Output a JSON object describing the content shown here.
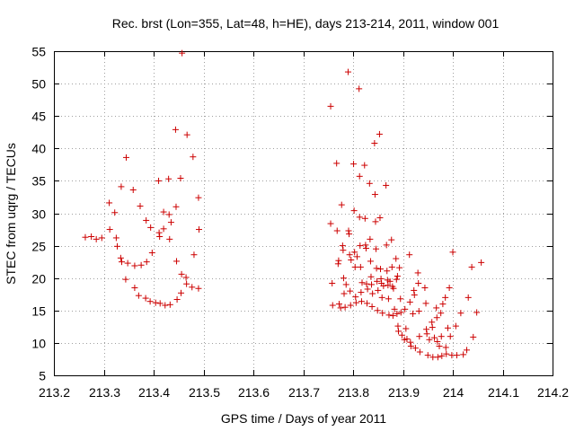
{
  "chart_data": {
    "type": "scatter",
    "title": "Rec. brst (Lon=355, Lat=48, h=HE), days 213-214, 2011, window 001",
    "xlabel": "GPS time / Days of year 2011",
    "ylabel": "STEC from uqrg / TECUs",
    "xlim": [
      213.2,
      214.2
    ],
    "ylim": [
      5,
      55
    ],
    "xticks": [
      213.2,
      213.3,
      213.4,
      213.5,
      213.6,
      213.7,
      213.8,
      213.9,
      214,
      214.1,
      214.2
    ],
    "xtick_labels": [
      "213.2",
      "213.3",
      "213.4",
      "213.5",
      "213.6",
      "213.7",
      "213.8",
      "213.9",
      "214",
      "214.1",
      "214.2"
    ],
    "yticks": [
      5,
      10,
      15,
      20,
      25,
      30,
      35,
      40,
      45,
      50,
      55
    ],
    "ytick_labels": [
      "5",
      "10",
      "15",
      "20",
      "25",
      "30",
      "35",
      "40",
      "45",
      "50",
      "55"
    ],
    "grid": true,
    "marker": "+",
    "color": "#cc0000",
    "series": [
      {
        "points": [
          [
            213.263,
            26.3
          ],
          [
            213.275,
            26.4
          ],
          [
            213.285,
            26.0
          ],
          [
            213.296,
            26.2
          ],
          [
            213.311,
            31.6
          ],
          [
            213.312,
            27.5
          ],
          [
            213.322,
            30.1
          ],
          [
            213.325,
            26.2
          ],
          [
            213.327,
            24.9
          ],
          [
            213.334,
            23.1
          ],
          [
            213.335,
            34.1
          ],
          [
            213.336,
            22.5
          ],
          [
            213.344,
            19.8
          ],
          [
            213.345,
            38.6
          ],
          [
            213.348,
            22.3
          ],
          [
            213.359,
            33.6
          ],
          [
            213.362,
            21.9
          ],
          [
            213.362,
            18.5
          ],
          [
            213.37,
            17.3
          ],
          [
            213.373,
            31.1
          ],
          [
            213.375,
            22.0
          ],
          [
            213.384,
            16.9
          ],
          [
            213.385,
            28.9
          ],
          [
            213.386,
            22.5
          ],
          [
            213.393,
            16.4
          ],
          [
            213.394,
            27.8
          ],
          [
            213.397,
            23.9
          ],
          [
            213.404,
            16.2
          ],
          [
            213.41,
            35.0
          ],
          [
            213.411,
            27.0
          ],
          [
            213.412,
            26.4
          ],
          [
            213.413,
            16.1
          ],
          [
            213.42,
            27.6
          ],
          [
            213.42,
            30.2
          ],
          [
            213.423,
            15.8
          ],
          [
            213.43,
            35.3
          ],
          [
            213.431,
            29.8
          ],
          [
            213.432,
            26.0
          ],
          [
            213.433,
            15.9
          ],
          [
            213.435,
            28.6
          ],
          [
            213.444,
            42.9
          ],
          [
            213.445,
            31.0
          ],
          [
            213.446,
            22.6
          ],
          [
            213.447,
            16.7
          ],
          [
            213.454,
            35.4
          ],
          [
            213.455,
            17.7
          ],
          [
            213.456,
            20.6
          ],
          [
            213.457,
            54.7
          ],
          [
            213.465,
            20.1
          ],
          [
            213.466,
            19.1
          ],
          [
            213.467,
            42.1
          ],
          [
            213.477,
            18.6
          ],
          [
            213.479,
            38.7
          ],
          [
            213.481,
            23.6
          ],
          [
            213.49,
            18.4
          ],
          [
            213.49,
            32.4
          ],
          [
            213.491,
            27.5
          ]
        ]
      },
      {
        "points": [
          [
            213.755,
            46.5
          ],
          [
            213.755,
            28.4
          ],
          [
            213.758,
            19.2
          ],
          [
            213.759,
            15.8
          ],
          [
            213.767,
            37.7
          ],
          [
            213.768,
            27.3
          ],
          [
            213.77,
            22.2
          ],
          [
            213.771,
            22.7
          ],
          [
            213.772,
            16.0
          ],
          [
            213.775,
            15.4
          ],
          [
            213.777,
            31.3
          ],
          [
            213.779,
            25.0
          ],
          [
            213.78,
            24.3
          ],
          [
            213.781,
            20.0
          ],
          [
            213.782,
            17.6
          ],
          [
            213.784,
            15.5
          ],
          [
            213.786,
            19.0
          ],
          [
            213.79,
            51.8
          ],
          [
            213.791,
            27.3
          ],
          [
            213.792,
            26.8
          ],
          [
            213.793,
            23.6
          ],
          [
            213.794,
            18.0
          ],
          [
            213.795,
            15.8
          ],
          [
            213.796,
            22.8
          ],
          [
            213.801,
            37.6
          ],
          [
            213.802,
            30.4
          ],
          [
            213.803,
            24.0
          ],
          [
            213.804,
            21.7
          ],
          [
            213.805,
            17.1
          ],
          [
            213.806,
            16.2
          ],
          [
            213.808,
            23.3
          ],
          [
            213.812,
            49.2
          ],
          [
            213.813,
            35.7
          ],
          [
            213.813,
            29.4
          ],
          [
            213.814,
            25.0
          ],
          [
            213.815,
            21.7
          ],
          [
            213.816,
            17.8
          ],
          [
            213.817,
            16.4
          ],
          [
            213.818,
            19.3
          ],
          [
            213.823,
            37.4
          ],
          [
            213.824,
            29.2
          ],
          [
            213.825,
            25.1
          ],
          [
            213.826,
            24.6
          ],
          [
            213.827,
            19.1
          ],
          [
            213.828,
            16.1
          ],
          [
            213.829,
            18.3
          ],
          [
            213.833,
            34.6
          ],
          [
            213.834,
            26.0
          ],
          [
            213.835,
            22.6
          ],
          [
            213.836,
            20.2
          ],
          [
            213.837,
            19.0
          ],
          [
            213.838,
            15.6
          ],
          [
            213.839,
            17.6
          ],
          [
            213.843,
            40.8
          ],
          [
            213.844,
            32.9
          ],
          [
            213.845,
            28.7
          ],
          [
            213.846,
            24.5
          ],
          [
            213.847,
            21.5
          ],
          [
            213.848,
            19.5
          ],
          [
            213.849,
            15.0
          ],
          [
            213.85,
            18.1
          ],
          [
            213.853,
            42.2
          ],
          [
            213.854,
            29.3
          ],
          [
            213.855,
            21.4
          ],
          [
            213.856,
            19.9
          ],
          [
            213.857,
            19.2
          ],
          [
            213.858,
            17.0
          ],
          [
            213.859,
            14.6
          ],
          [
            213.861,
            18.8
          ],
          [
            213.866,
            34.3
          ],
          [
            213.867,
            25.1
          ],
          [
            213.868,
            21.1
          ],
          [
            213.869,
            19.7
          ],
          [
            213.87,
            18.9
          ],
          [
            213.871,
            16.8
          ],
          [
            213.872,
            14.3
          ],
          [
            213.874,
            19.5
          ],
          [
            213.877,
            25.9
          ],
          [
            213.878,
            21.7
          ],
          [
            213.879,
            18.7
          ],
          [
            213.88,
            14.2
          ],
          [
            213.881,
            18.4
          ],
          [
            213.883,
            15.2
          ],
          [
            213.886,
            23.0
          ],
          [
            213.887,
            19.8
          ],
          [
            213.888,
            14.5
          ],
          [
            213.889,
            20.3
          ],
          [
            213.89,
            12.6
          ],
          [
            213.891,
            11.8
          ],
          [
            213.893,
            21.6
          ],
          [
            213.895,
            16.8
          ],
          [
            213.896,
            14.7
          ],
          [
            213.898,
            11.2
          ],
          [
            213.903,
            10.5
          ],
          [
            213.904,
            15.2
          ],
          [
            213.906,
            12.2
          ],
          [
            213.908,
            10.6
          ],
          [
            213.913,
            23.6
          ],
          [
            213.914,
            16.3
          ],
          [
            213.915,
            10.1
          ],
          [
            213.916,
            9.5
          ],
          [
            213.92,
            14.5
          ],
          [
            213.922,
            18.1
          ],
          [
            213.923,
            17.4
          ],
          [
            213.925,
            9.2
          ],
          [
            213.93,
            20.8
          ],
          [
            213.931,
            19.2
          ],
          [
            213.932,
            14.9
          ],
          [
            213.933,
            11.0
          ],
          [
            213.934,
            8.6
          ],
          [
            213.944,
            18.5
          ],
          [
            213.946,
            16.1
          ],
          [
            213.947,
            12.1
          ],
          [
            213.948,
            11.4
          ],
          [
            213.95,
            8.1
          ],
          [
            213.953,
            10.5
          ],
          [
            213.958,
            13.2
          ],
          [
            213.959,
            12.4
          ],
          [
            213.96,
            7.8
          ],
          [
            213.963,
            10.8
          ],
          [
            213.967,
            15.4
          ],
          [
            213.968,
            13.9
          ],
          [
            213.969,
            10.2
          ],
          [
            213.97,
            7.8
          ],
          [
            213.973,
            9.5
          ],
          [
            213.976,
            14.6
          ],
          [
            213.977,
            11.0
          ],
          [
            213.978,
            8.0
          ],
          [
            213.98,
            16.0
          ],
          [
            213.985,
            17.0
          ],
          [
            213.986,
            9.3
          ],
          [
            213.987,
            8.3
          ],
          [
            213.99,
            12.3
          ],
          [
            213.993,
            18.5
          ],
          [
            213.995,
            11.0
          ],
          [
            213.998,
            8.1
          ],
          [
            214.0,
            24.0
          ],
          [
            214.006,
            12.6
          ],
          [
            214.008,
            8.1
          ],
          [
            214.016,
            14.6
          ],
          [
            214.021,
            8.2
          ],
          [
            214.028,
            8.9
          ],
          [
            214.031,
            17.0
          ],
          [
            214.038,
            21.7
          ],
          [
            214.041,
            10.9
          ],
          [
            214.048,
            14.7
          ],
          [
            214.057,
            22.4
          ]
        ]
      }
    ]
  }
}
